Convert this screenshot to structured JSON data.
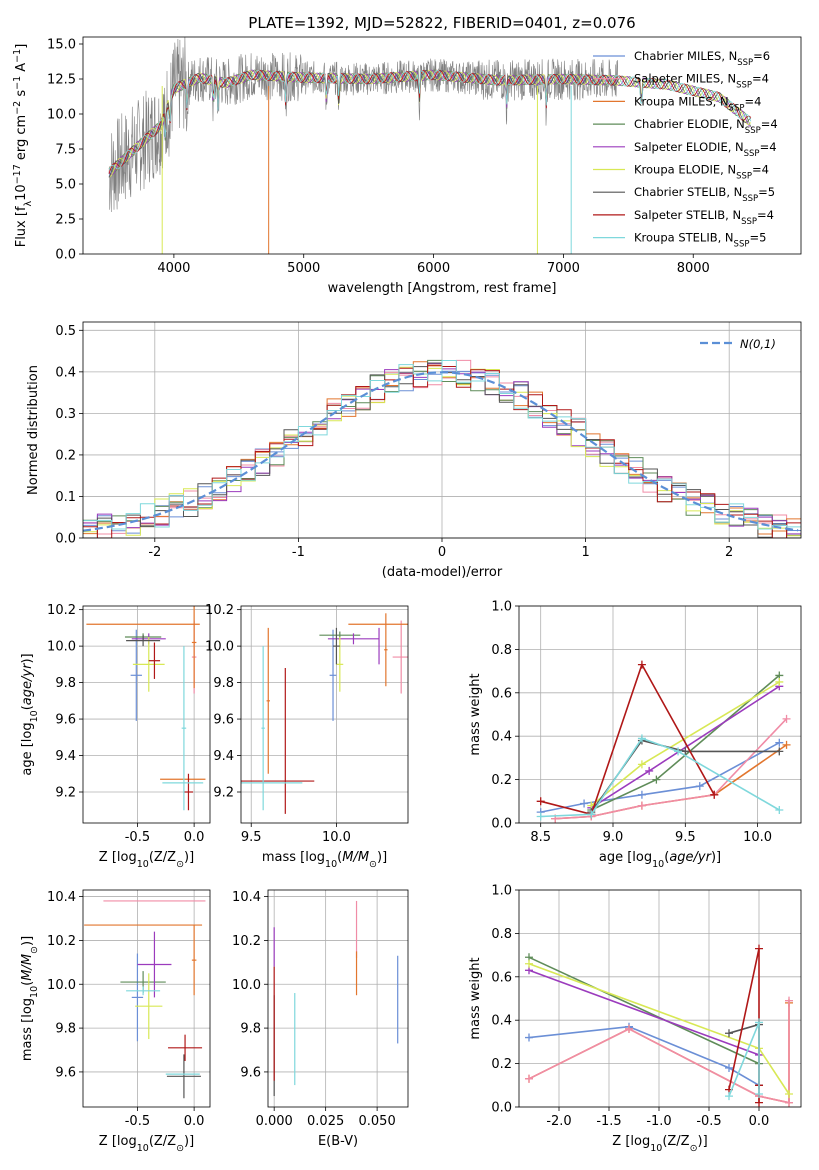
{
  "title": "PLATE=1392, MJD=52822, FIBERID=0401, z=0.076",
  "colors": {
    "Chabrier MILES": "#6b8fd6",
    "Salpeter MILES": "#f08ca6",
    "Kroupa MILES": "#e2762e",
    "Chabrier ELODIE": "#5f8c59",
    "Salpeter ELODIE": "#9b3bbd",
    "Kroupa ELODIE": "#d8e855",
    "Chabrier STELIB": "#555555",
    "Salpeter STELIB": "#b01818",
    "Kroupa STELIB": "#7fd8dc",
    "data": "#808080",
    "gauss": "#5b8fd6"
  },
  "chart_data": [
    {
      "type": "line",
      "id": "spectrum",
      "title": "PLATE=1392, MJD=52822, FIBERID=0401, z=0.076",
      "xlabel": "wavelength [Angstrom, rest frame]",
      "ylabel": "Flux [f_λ 10^-17 erg cm^-2 s^-1 A^-1]",
      "xlim": [
        3300,
        8830
      ],
      "ylim": [
        0,
        15.5
      ],
      "xticks": [
        4000,
        5000,
        6000,
        7000,
        8000
      ],
      "yticks": [
        0.0,
        2.5,
        5.0,
        7.5,
        10.0,
        12.5,
        15.0
      ],
      "legend": "upper-right",
      "legend_entries": [
        {
          "name": "Chabrier MILES",
          "nssp": "6"
        },
        {
          "name": "Salpeter MILES",
          "nssp": "4"
        },
        {
          "name": "Kroupa MILES",
          "nssp": "4"
        },
        {
          "name": "Chabrier ELODIE",
          "nssp": "4"
        },
        {
          "name": "Salpeter ELODIE",
          "nssp": "4"
        },
        {
          "name": "Kroupa ELODIE",
          "nssp": "4"
        },
        {
          "name": "Chabrier STELIB",
          "nssp": "5"
        },
        {
          "name": "Salpeter STELIB",
          "nssp": "4"
        },
        {
          "name": "Kroupa STELIB",
          "nssp": "5"
        }
      ],
      "continuum_x": [
        3500,
        3700,
        3900,
        4000,
        4200,
        4400,
        4600,
        5000,
        5500,
        6000,
        6500,
        7000,
        7400,
        7800,
        8200,
        8500
      ],
      "continuum_y": [
        5.8,
        7.5,
        9.2,
        11.8,
        12.6,
        12.2,
        12.8,
        12.6,
        12.5,
        12.8,
        12.4,
        12.5,
        12.4,
        12.1,
        11.2,
        9.0
      ]
    },
    {
      "type": "histogram",
      "id": "residuals",
      "xlabel": "(data-model)/error",
      "ylabel": "Normed distribution",
      "xlim": [
        -2.5,
        2.5
      ],
      "ylim": [
        0,
        0.52
      ],
      "xticks": [
        -2,
        -1,
        0,
        1,
        2
      ],
      "yticks": [
        0.0,
        0.1,
        0.2,
        0.3,
        0.4,
        0.5
      ],
      "legend": "upper-right",
      "legend_label": "N(0,1)",
      "bin_width": 0.1
    },
    {
      "type": "scatter",
      "id": "age_vs_Z",
      "xlabel": "Z [log10(Z/Z⊙)]",
      "ylabel": "age [log10(age/yr)]",
      "xlim": [
        -0.98,
        0.14
      ],
      "ylim": [
        9.03,
        10.22
      ],
      "xticks": [
        -0.5,
        0.0
      ],
      "yticks": [
        9.2,
        9.4,
        9.6,
        9.8,
        10.0,
        10.2
      ],
      "points": [
        {
          "model": "Chabrier MILES",
          "x": -0.51,
          "xerr": 0.05,
          "y": 9.84,
          "yerr": 0.25
        },
        {
          "model": "Salpeter MILES",
          "x": 0.0,
          "xerr": 0.02,
          "y": 9.94,
          "yerr": 0.2
        },
        {
          "model": "Kroupa MILES",
          "x": -0.45,
          "xerr": 0.5,
          "y": 10.12,
          "yerr": 0.0
        },
        {
          "model": "Kroupa MILES",
          "x": -0.1,
          "xerr": 0.2,
          "y": 9.27,
          "yerr": 0.0
        },
        {
          "model": "Kroupa MILES",
          "x": 0.0,
          "xerr": 0.02,
          "y": 10.02,
          "yerr": 0.25
        },
        {
          "model": "Chabrier ELODIE",
          "x": -0.45,
          "xerr": 0.16,
          "y": 10.05,
          "yerr": 0.02
        },
        {
          "model": "Salpeter ELODIE",
          "x": -0.4,
          "xerr": 0.15,
          "y": 10.04,
          "yerr": 0.03
        },
        {
          "model": "Kroupa ELODIE",
          "x": -0.4,
          "xerr": 0.14,
          "y": 9.9,
          "yerr": 0.15
        },
        {
          "model": "Chabrier STELIB",
          "x": -0.45,
          "xerr": 0.15,
          "y": 10.03,
          "yerr": 0.03
        },
        {
          "model": "Salpeter STELIB",
          "x": -0.35,
          "xerr": 0.05,
          "y": 9.92,
          "yerr": 0.1
        },
        {
          "model": "Salpeter STELIB",
          "x": -0.05,
          "xerr": 0.04,
          "y": 9.2,
          "yerr": 0.1
        },
        {
          "model": "Kroupa STELIB",
          "x": -0.1,
          "xerr": 0.18,
          "y": 9.25,
          "yerr": 0.0
        },
        {
          "model": "Kroupa STELIB",
          "x": -0.09,
          "xerr": 0.02,
          "y": 9.55,
          "yerr": 0.45
        }
      ]
    },
    {
      "type": "scatter",
      "id": "age_vs_mass",
      "xlabel": "mass [log10(M/M⊙)]",
      "ylabel": "",
      "xlim": [
        9.44,
        10.42
      ],
      "ylim": [
        9.03,
        10.22
      ],
      "xticks": [
        9.5,
        10.0
      ],
      "yticks": [
        9.2,
        9.4,
        9.6,
        9.8,
        10.0,
        10.2
      ],
      "points": [
        {
          "model": "Chabrier MILES",
          "x": 9.98,
          "xerr": 0.02,
          "y": 9.84,
          "yerr": 0.25
        },
        {
          "model": "Salpeter MILES",
          "x": 10.38,
          "xerr": 0.05,
          "y": 9.94,
          "yerr": 0.2
        },
        {
          "model": "Kroupa MILES",
          "x": 10.27,
          "xerr": 0.2,
          "y": 10.12,
          "yerr": 0.0
        },
        {
          "model": "Kroupa MILES",
          "x": 10.29,
          "xerr": 0.01,
          "y": 9.98,
          "yerr": 0.2
        },
        {
          "model": "Kroupa MILES",
          "x": 9.6,
          "xerr": 0.01,
          "y": 9.7,
          "yerr": 0.4
        },
        {
          "model": "Chabrier ELODIE",
          "x": 10.02,
          "xerr": 0.12,
          "y": 10.06,
          "yerr": 0.02
        },
        {
          "model": "Salpeter ELODIE",
          "x": 10.1,
          "xerr": 0.15,
          "y": 10.04,
          "yerr": 0.03
        },
        {
          "model": "Salpeter ELODIE",
          "x": 10.25,
          "xerr": 0.0,
          "y": 10.0,
          "yerr": 0.1
        },
        {
          "model": "Kroupa ELODIE",
          "x": 10.02,
          "xerr": 0.02,
          "y": 9.9,
          "yerr": 0.15
        },
        {
          "model": "Chabrier STELIB",
          "x": 10.0,
          "xerr": 0.02,
          "y": 10.0,
          "yerr": 0.1
        },
        {
          "model": "Salpeter STELIB",
          "x": 9.65,
          "xerr": 0.22,
          "y": 9.26,
          "yerr": 0.0
        },
        {
          "model": "Salpeter STELIB",
          "x": 9.7,
          "xerr": 0.0,
          "y": 9.48,
          "yerr": 0.4
        },
        {
          "model": "Kroupa STELIB",
          "x": 9.6,
          "xerr": 0.2,
          "y": 9.25,
          "yerr": 0.0
        },
        {
          "model": "Kroupa STELIB",
          "x": 9.57,
          "xerr": 0.01,
          "y": 9.55,
          "yerr": 0.45
        }
      ]
    },
    {
      "type": "line",
      "id": "massweight_vs_age",
      "xlabel": "age [log10(age/yr)]",
      "ylabel": "mass weight",
      "xlim": [
        8.35,
        10.3
      ],
      "ylim": [
        0.0,
        1.0
      ],
      "xticks": [
        8.5,
        9.0,
        9.5,
        10.0
      ],
      "yticks": [
        0.0,
        0.2,
        0.4,
        0.6,
        0.8,
        1.0
      ],
      "series": [
        {
          "name": "Chabrier MILES",
          "x": [
            8.5,
            8.8,
            9.2,
            9.6,
            10.15
          ],
          "y": [
            0.05,
            0.09,
            0.13,
            0.17,
            0.37
          ]
        },
        {
          "name": "Kroupa MILES",
          "x": [
            8.6,
            8.85,
            9.2,
            9.7,
            10.2
          ],
          "y": [
            0.02,
            0.03,
            0.08,
            0.13,
            0.36
          ]
        },
        {
          "name": "Salpeter MILES",
          "x": [
            8.6,
            8.85,
            9.2,
            9.7,
            10.2
          ],
          "y": [
            0.02,
            0.03,
            0.08,
            0.13,
            0.48
          ]
        },
        {
          "name": "Chabrier ELODIE",
          "x": [
            8.85,
            9.3,
            10.15
          ],
          "y": [
            0.06,
            0.2,
            0.68
          ]
        },
        {
          "name": "Salpeter ELODIE",
          "x": [
            8.85,
            9.25,
            10.15
          ],
          "y": [
            0.07,
            0.24,
            0.63
          ]
        },
        {
          "name": "Kroupa ELODIE",
          "x": [
            8.85,
            9.2,
            10.15
          ],
          "y": [
            0.08,
            0.27,
            0.65
          ]
        },
        {
          "name": "Chabrier STELIB",
          "x": [
            8.85,
            9.2,
            9.5,
            10.15
          ],
          "y": [
            0.05,
            0.38,
            0.33,
            0.33
          ]
        },
        {
          "name": "Salpeter STELIB",
          "x": [
            8.5,
            8.85,
            9.2,
            9.7
          ],
          "y": [
            0.1,
            0.04,
            0.73,
            0.13
          ]
        },
        {
          "name": "Kroupa STELIB",
          "x": [
            8.5,
            8.85,
            9.2,
            9.45,
            10.15
          ],
          "y": [
            0.03,
            0.04,
            0.39,
            0.33,
            0.06
          ]
        }
      ]
    },
    {
      "type": "scatter",
      "id": "mass_vs_Z",
      "xlabel": "Z [log10(Z/Z⊙)]",
      "ylabel": "mass [log10(M/M⊙)]",
      "xlim": [
        -0.98,
        0.14
      ],
      "ylim": [
        9.44,
        10.43
      ],
      "xticks": [
        -0.5,
        0.0
      ],
      "yticks": [
        9.6,
        9.8,
        10.0,
        10.2,
        10.4
      ],
      "points": [
        {
          "model": "Chabrier MILES",
          "x": -0.5,
          "xerr": 0.05,
          "y": 9.94,
          "yerr": 0.2
        },
        {
          "model": "Salpeter MILES",
          "x": -0.35,
          "xerr": 0.45,
          "y": 10.38,
          "yerr": 0.0
        },
        {
          "model": "Kroupa MILES",
          "x": -0.45,
          "xerr": 0.52,
          "y": 10.27,
          "yerr": 0.0
        },
        {
          "model": "Kroupa MILES",
          "x": 0.0,
          "xerr": 0.02,
          "y": 10.11,
          "yerr": 0.16
        },
        {
          "model": "Chabrier ELODIE",
          "x": -0.45,
          "xerr": 0.2,
          "y": 10.01,
          "yerr": 0.05
        },
        {
          "model": "Salpeter ELODIE",
          "x": -0.35,
          "xerr": 0.15,
          "y": 10.09,
          "yerr": 0.15
        },
        {
          "model": "Kroupa ELODIE",
          "x": -0.4,
          "xerr": 0.12,
          "y": 9.9,
          "yerr": 0.15
        },
        {
          "model": "Chabrier STELIB",
          "x": -0.09,
          "xerr": 0.15,
          "y": 9.58,
          "yerr": 0.1
        },
        {
          "model": "Salpeter STELIB",
          "x": -0.08,
          "xerr": 0.15,
          "y": 9.71,
          "yerr": 0.06
        },
        {
          "model": "Kroupa STELIB",
          "x": -0.45,
          "xerr": 0.15,
          "y": 9.97,
          "yerr": 0.02
        },
        {
          "model": "Kroupa STELIB",
          "x": -0.1,
          "xerr": 0.15,
          "y": 9.59,
          "yerr": 0.0
        }
      ]
    },
    {
      "type": "scatter",
      "id": "mass_vs_EBV",
      "xlabel": "E(B-V)",
      "ylabel": "",
      "xlim": [
        -0.003,
        0.065
      ],
      "ylim": [
        9.44,
        10.43
      ],
      "xticks": [
        0.0,
        0.025,
        0.05
      ],
      "yticks": [
        9.6,
        9.8,
        10.0,
        10.2,
        10.4
      ],
      "points": [
        {
          "model": "Salpeter ELODIE",
          "x": 0.0,
          "y": 10.17,
          "yerr": 0.09
        },
        {
          "model": "Chabrier STELIB",
          "x": 0.0,
          "y": 9.72,
          "yerr": 0.23
        },
        {
          "model": "Salpeter STELIB",
          "x": 0.0,
          "y": 9.82,
          "yerr": 0.26
        },
        {
          "model": "Kroupa STELIB",
          "x": 0.01,
          "y": 9.75,
          "yerr": 0.21
        },
        {
          "model": "Salpeter MILES",
          "x": 0.04,
          "y": 10.25,
          "yerr": 0.13
        },
        {
          "model": "Kroupa MILES",
          "x": 0.04,
          "y": 10.05,
          "yerr": 0.1
        },
        {
          "model": "Chabrier MILES",
          "x": 0.06,
          "y": 9.93,
          "yerr": 0.2
        }
      ]
    },
    {
      "type": "line",
      "id": "massweight_vs_Z",
      "xlabel": "Z [log10(Z/Z⊙)]",
      "ylabel": "mass weight",
      "xlim": [
        -2.4,
        0.42
      ],
      "ylim": [
        0.0,
        1.0
      ],
      "xticks": [
        -2.0,
        -1.5,
        -1.0,
        -0.5,
        0.0
      ],
      "yticks": [
        0.0,
        0.2,
        0.4,
        0.6,
        0.8,
        1.0
      ],
      "series": [
        {
          "name": "Chabrier MILES",
          "x": [
            -2.3,
            -1.3,
            -0.3,
            0.0
          ],
          "y": [
            0.32,
            0.37,
            0.18,
            0.1
          ]
        },
        {
          "name": "Kroupa MILES",
          "x": [
            -2.3,
            -1.3,
            0.0,
            0.3,
            0.3
          ],
          "y": [
            0.13,
            0.36,
            0.05,
            0.02,
            0.48
          ]
        },
        {
          "name": "Salpeter MILES",
          "x": [
            -2.3,
            -1.3,
            0.0,
            0.3,
            0.3
          ],
          "y": [
            0.13,
            0.36,
            0.05,
            0.02,
            0.49
          ]
        },
        {
          "name": "Chabrier ELODIE",
          "x": [
            -2.3,
            0.0
          ],
          "y": [
            0.69,
            0.2
          ]
        },
        {
          "name": "Salpeter ELODIE",
          "x": [
            -2.3,
            0.0
          ],
          "y": [
            0.63,
            0.24
          ]
        },
        {
          "name": "Kroupa ELODIE",
          "x": [
            -2.3,
            0.0,
            0.3
          ],
          "y": [
            0.66,
            0.27,
            0.06
          ]
        },
        {
          "name": "Chabrier STELIB",
          "x": [
            -0.3,
            0.0,
            0.0
          ],
          "y": [
            0.34,
            0.38,
            0.1
          ]
        },
        {
          "name": "Salpeter STELIB",
          "x": [
            -0.3,
            0.0,
            0.0,
            0.0
          ],
          "y": [
            0.08,
            0.73,
            0.1,
            0.02
          ]
        },
        {
          "name": "Kroupa STELIB",
          "x": [
            -0.3,
            0.0,
            0.0
          ],
          "y": [
            0.05,
            0.39,
            0.06
          ]
        }
      ]
    }
  ]
}
